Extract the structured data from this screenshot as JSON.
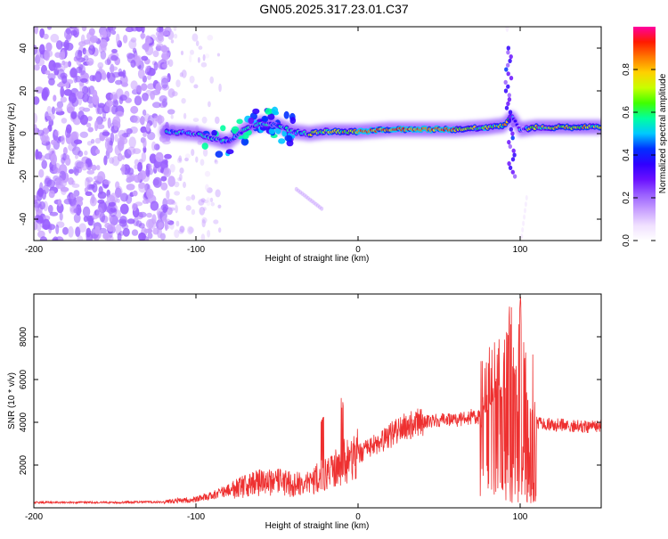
{
  "title": "GN05.2025.317.23.01.C37",
  "colors": {
    "snr_line": "#ee3030",
    "colormap": [
      "#ffffff",
      "#f0e0ff",
      "#c8a0ff",
      "#9a60ff",
      "#6a10ff",
      "#3000ff",
      "#0030ff",
      "#00c8ff",
      "#00ffa0",
      "#40ff00",
      "#c8ff00",
      "#ffd000",
      "#ff7a00",
      "#ff1a00",
      "#ff00a0"
    ]
  },
  "chart_data": [
    {
      "type": "heatmap",
      "name": "spectrogram",
      "xlabel": "Height of straight line (km)",
      "ylabel": "Frequency (Hz)",
      "xlim": [
        -200,
        150
      ],
      "ylim": [
        -50,
        50
      ],
      "xticks": [
        -200,
        -100,
        0,
        100
      ],
      "yticks": [
        -40,
        -20,
        0,
        20,
        40
      ],
      "colorbar": {
        "label": "Normalized spectral amplitude",
        "range": [
          0,
          1
        ],
        "ticks": [
          "0.0",
          "0.2",
          "0.4",
          "0.6",
          "0.8"
        ]
      },
      "ridge": {
        "description": "dominant frequency track",
        "x": [
          -120,
          -100,
          -90,
          -80,
          -70,
          -60,
          -50,
          -40,
          -30,
          -20,
          -10,
          0,
          20,
          40,
          60,
          80,
          90,
          95,
          100,
          110,
          130,
          150
        ],
        "y": [
          1,
          0,
          -2,
          -4,
          2,
          5,
          4,
          1,
          0,
          1,
          1,
          1,
          2,
          2,
          2,
          3,
          4,
          8,
          2,
          3,
          3,
          3
        ]
      }
    },
    {
      "type": "line",
      "name": "snr",
      "xlabel": "Height of straight line (km)",
      "ylabel": "SNR (10 * v/v)",
      "xlim": [
        -200,
        150
      ],
      "ylim": [
        0,
        10000
      ],
      "xticks": [
        -200,
        -100,
        0,
        100
      ],
      "yticks": [
        2000,
        4000,
        6000,
        8000
      ],
      "envelope": {
        "x": [
          -200,
          -150,
          -120,
          -100,
          -90,
          -80,
          -70,
          -60,
          -50,
          -40,
          -30,
          -20,
          -10,
          0,
          10,
          20,
          30,
          40,
          50,
          60,
          70,
          80,
          85,
          90,
          95,
          100,
          105,
          110,
          120,
          130,
          140,
          150
        ],
        "y": [
          250,
          250,
          280,
          400,
          600,
          800,
          1000,
          1200,
          1200,
          1100,
          1200,
          1600,
          2100,
          2500,
          2900,
          3400,
          3800,
          4000,
          4100,
          4100,
          4200,
          4300,
          4300,
          4300,
          4300,
          4300,
          4200,
          4000,
          3900,
          3850,
          3800,
          3800
        ]
      },
      "spikes": [
        {
          "x": -22,
          "y": 4600
        },
        {
          "x": -10,
          "y": 5200
        },
        {
          "x": 70,
          "y": 4800
        },
        {
          "x": 78,
          "y": 5200
        },
        {
          "x": 82,
          "y": 5000
        },
        {
          "x": 88,
          "y": 6000
        },
        {
          "x": 92,
          "y": 8300
        },
        {
          "x": 94,
          "y": 9600
        },
        {
          "x": 97,
          "y": 7000
        },
        {
          "x": 100,
          "y": 9900
        },
        {
          "x": 104,
          "y": 5600
        },
        {
          "x": 108,
          "y": 4600
        }
      ]
    }
  ]
}
